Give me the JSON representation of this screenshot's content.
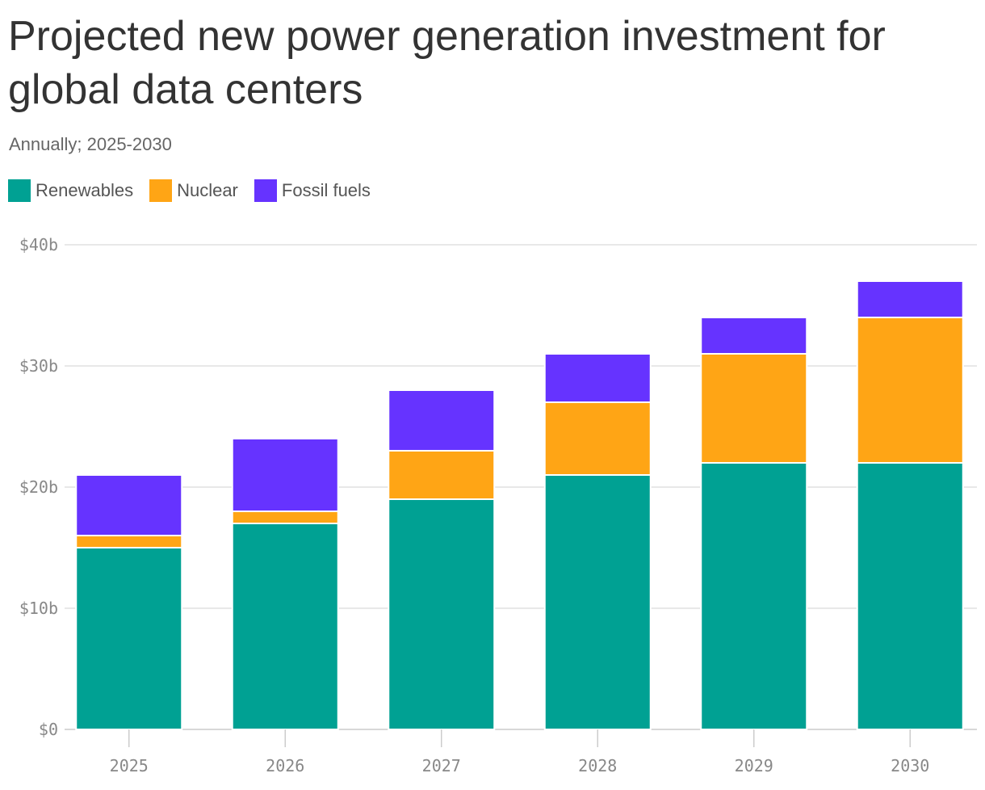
{
  "chart_data": {
    "type": "bar",
    "stacked": true,
    "title": "Projected new power generation investment for global data centers",
    "subtitle": "Annually; 2025-2030",
    "categories": [
      "2025",
      "2026",
      "2027",
      "2028",
      "2029",
      "2030"
    ],
    "series": [
      {
        "name": "Renewables",
        "color": "#00a193",
        "values": [
          15,
          17,
          19,
          21,
          22,
          22
        ]
      },
      {
        "name": "Nuclear",
        "color": "#ffa515",
        "values": [
          1,
          1,
          4,
          6,
          9,
          12
        ]
      },
      {
        "name": "Fossil fuels",
        "color": "#6633ff",
        "values": [
          5,
          6,
          5,
          4,
          3,
          3
        ]
      }
    ],
    "ylim": [
      0,
      40
    ],
    "yticks": [
      0,
      10,
      20,
      30,
      40
    ],
    "ytick_labels": [
      "$0",
      "$10b",
      "$20b",
      "$30b",
      "$40b"
    ],
    "grid": true,
    "legend_position": "top-left"
  }
}
